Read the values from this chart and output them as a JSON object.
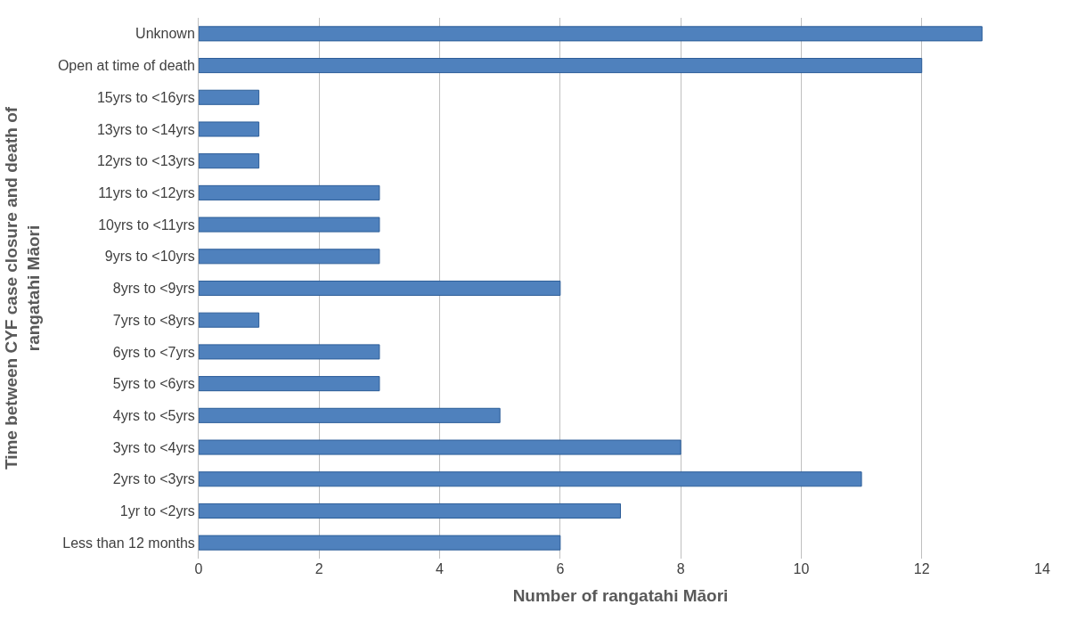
{
  "chart_data": {
    "type": "bar",
    "orientation": "horizontal",
    "xlabel": "Number of rangatahi Māori",
    "ylabel": "Time between CYF case closure and death of rangatahi Māori",
    "categories": [
      "Unknown",
      "Open at time of death",
      "15yrs to <16yrs",
      "13yrs to <14yrs",
      "12yrs to <13yrs",
      "11yrs to <12yrs",
      "10yrs to <11yrs",
      "9yrs to <10yrs",
      "8yrs to <9yrs",
      "7yrs to <8yrs",
      "6yrs to <7yrs",
      "5yrs to <6yrs",
      "4yrs to <5yrs",
      "3yrs to <4yrs",
      "2yrs to <3yrs",
      "1yr to <2yrs",
      "Less than 12 months"
    ],
    "values": [
      13,
      12,
      1,
      1,
      1,
      3,
      3,
      3,
      6,
      1,
      3,
      3,
      5,
      8,
      11,
      7,
      6
    ],
    "color": "#4f81bd",
    "xlim": [
      0,
      14
    ],
    "xticks": [
      0,
      2,
      4,
      6,
      8,
      10,
      12,
      14
    ],
    "grid": "x",
    "legend": false
  }
}
